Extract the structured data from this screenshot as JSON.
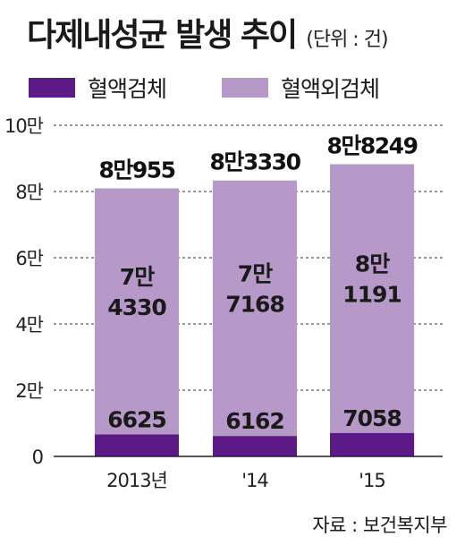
{
  "title": "다제내성균 발생 추이",
  "unit": "(단위 : 건)",
  "source": "자료 : 보건복지부",
  "colors": {
    "blood": "#5b1a86",
    "non_blood": "#b699c8"
  },
  "chart_data": {
    "type": "bar",
    "stacked": true,
    "categories": [
      "2013년",
      "'14",
      "'15"
    ],
    "series": [
      {
        "name": "혈액검체",
        "values": [
          6625,
          6162,
          7058
        ],
        "labels": [
          "6625",
          "6162",
          "7058"
        ]
      },
      {
        "name": "혈액외검체",
        "values": [
          74330,
          77168,
          81191
        ],
        "labels": [
          [
            "7만",
            "4330"
          ],
          [
            "7만",
            "7168"
          ],
          [
            "8만",
            "1191"
          ]
        ]
      }
    ],
    "totals": {
      "values": [
        80955,
        83330,
        88249
      ],
      "labels": [
        "8만955",
        "8만3330",
        "8만8249"
      ]
    },
    "ylim": [
      0,
      100000
    ],
    "yticks": [
      0,
      20000,
      40000,
      60000,
      80000,
      100000
    ],
    "ytick_labels": [
      "0",
      "2만",
      "4만",
      "6만",
      "8만",
      "10만"
    ],
    "grid": true,
    "legend_position": "top-left"
  }
}
